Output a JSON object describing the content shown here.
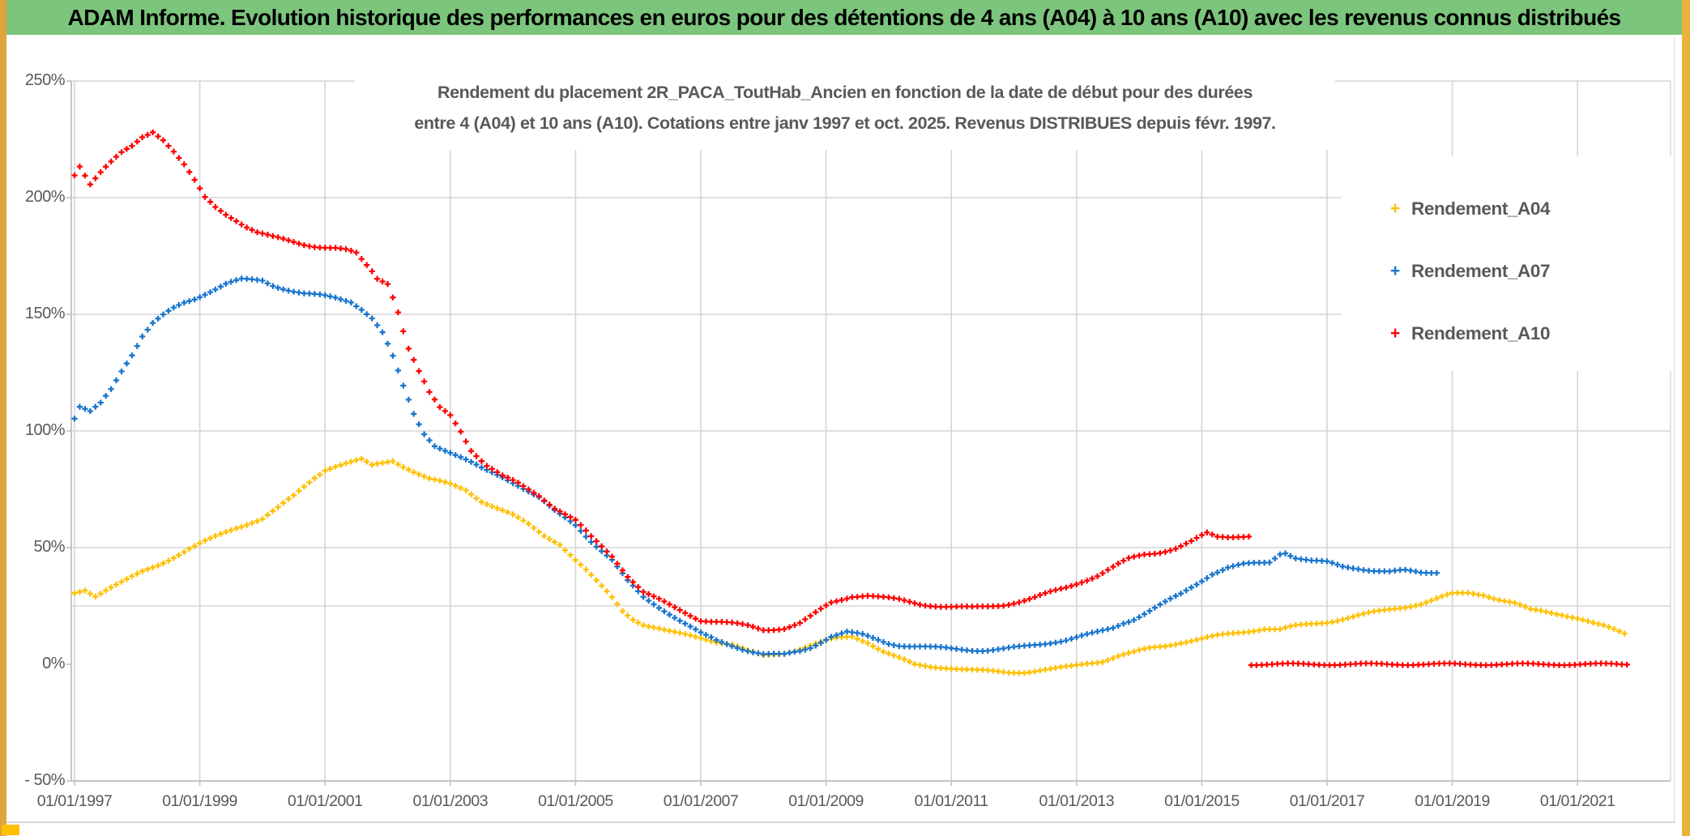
{
  "page": {
    "title": "ADAM Informe. Evolution historique des performances en euros pour des détentions de 4 ans (A04) à 10 ans (A10) avec les revenus connus distribués"
  },
  "chart": {
    "subtitle_line1": "Rendement du placement 2R_PACA_ToutHab_Ancien en fonction de la date de début pour des durées",
    "subtitle_line2": "entre 4 (A04) et 10 ans (A10). Cotations entre janv 1997 et oct. 2025. Revenus DISTRIBUES depuis févr. 1997."
  },
  "legend": {
    "items": [
      {
        "label": "Rendement_A04",
        "marker": "+",
        "color": "#FFC000"
      },
      {
        "label": "Rendement_A07",
        "marker": "+",
        "color": "#1874CD"
      },
      {
        "label": "Rendement_A10",
        "marker": "+",
        "color": "#FF0000"
      }
    ]
  },
  "chart_data": {
    "type": "scatter",
    "marker_style": "plus",
    "title": "Rendement du placement 2R_PACA_ToutHab_Ancien en fonction de la date de début pour des durées entre 4 (A04) et 10 ans (A10). Cotations entre janv 1997 et oct. 2025. Revenus DISTRIBUES depuis févr. 1997.",
    "x_axis": {
      "ticks": [
        "01/01/1997",
        "01/01/1999",
        "01/01/2001",
        "01/01/2003",
        "01/01/2005",
        "01/01/2007",
        "01/01/2009",
        "01/01/2011",
        "01/01/2013",
        "01/01/2015",
        "01/01/2017",
        "01/01/2019",
        "01/01/2021"
      ],
      "start_year": 1997,
      "tick_step_years": 2,
      "end_year": 2022.4
    },
    "y_axis": {
      "min": -50,
      "max": 250,
      "ticks": [
        {
          "label": "250%",
          "value": 250
        },
        {
          "label": "200%",
          "value": 200
        },
        {
          "label": "150%",
          "value": 150
        },
        {
          "label": "100%",
          "value": 100
        },
        {
          "label": "50%",
          "value": 50
        },
        {
          "label": "0%",
          "value": 0
        },
        {
          "label": "- 50%",
          "value": -50
        }
      ],
      "gridline_values": [
        250,
        200,
        150,
        100,
        50,
        25,
        -50
      ]
    },
    "series": [
      {
        "name": "Rendement_A04",
        "color": "#FFC000",
        "points": [
          [
            1997.0,
            30.5
          ],
          [
            1997.17,
            32
          ],
          [
            1997.33,
            29.5
          ],
          [
            1997.58,
            33
          ],
          [
            1997.83,
            36
          ],
          [
            1998.08,
            39.5
          ],
          [
            1998.33,
            42.5
          ],
          [
            1998.58,
            46
          ],
          [
            1998.83,
            49.5
          ],
          [
            1999.08,
            52.5
          ],
          [
            1999.33,
            55.5
          ],
          [
            1999.58,
            58.5
          ],
          [
            1999.83,
            61
          ],
          [
            2000.0,
            62.5
          ],
          [
            2000.25,
            67
          ],
          [
            2000.5,
            72
          ],
          [
            2000.83,
            80
          ],
          [
            2001.0,
            83.5
          ],
          [
            2001.17,
            85.1
          ],
          [
            2001.58,
            87.6
          ],
          [
            2001.75,
            85.1
          ],
          [
            2002.08,
            87.4
          ],
          [
            2002.33,
            83.9
          ],
          [
            2002.67,
            79.3
          ],
          [
            2003.0,
            77
          ],
          [
            2003.25,
            74.7
          ],
          [
            2003.5,
            70.1
          ],
          [
            2003.83,
            66
          ],
          [
            2004.0,
            63.8
          ],
          [
            2004.25,
            59.8
          ],
          [
            2004.5,
            55.2
          ],
          [
            2004.75,
            51.7
          ],
          [
            2005.0,
            44.8
          ],
          [
            2005.17,
            40.2
          ],
          [
            2005.33,
            35.6
          ],
          [
            2005.58,
            28.7
          ],
          [
            2005.75,
            23
          ],
          [
            2005.92,
            19.5
          ],
          [
            2006.08,
            17.2
          ],
          [
            2006.5,
            13.8
          ],
          [
            2007.0,
            11.5
          ],
          [
            2007.25,
            9.8
          ],
          [
            2007.5,
            8.5
          ],
          [
            2007.75,
            5.5
          ],
          [
            2008.0,
            3.6
          ],
          [
            2008.25,
            4.5
          ],
          [
            2008.5,
            6
          ],
          [
            2008.75,
            8
          ],
          [
            2009.0,
            9.9
          ],
          [
            2009.17,
            11
          ],
          [
            2009.42,
            12
          ],
          [
            2009.67,
            9.5
          ],
          [
            2009.92,
            5.5
          ],
          [
            2010.17,
            2.5
          ],
          [
            2010.42,
            -0.4
          ],
          [
            2010.67,
            -1
          ],
          [
            2010.92,
            -1.3
          ],
          [
            2011.17,
            -2
          ],
          [
            2011.42,
            -2.8
          ],
          [
            2011.67,
            -3.2
          ],
          [
            2011.92,
            -3.4
          ],
          [
            2012.17,
            -3.2
          ],
          [
            2012.42,
            -2.6
          ],
          [
            2012.67,
            -2
          ],
          [
            2012.92,
            -1
          ],
          [
            2013.17,
            0.5
          ],
          [
            2013.42,
            1.5
          ],
          [
            2013.67,
            3.6
          ],
          [
            2013.92,
            5
          ],
          [
            2014.17,
            6.8
          ],
          [
            2014.42,
            8
          ],
          [
            2014.67,
            9.5
          ],
          [
            2014.92,
            10.5
          ],
          [
            2015.0,
            10.9
          ],
          [
            2015.5,
            13.2
          ],
          [
            2016.0,
            15.4
          ],
          [
            2016.25,
            14.8
          ],
          [
            2016.5,
            16.3
          ],
          [
            2017.0,
            18.2
          ],
          [
            2017.5,
            20.8
          ],
          [
            2018.0,
            23.5
          ],
          [
            2018.5,
            26
          ],
          [
            2019.0,
            30
          ],
          [
            2019.25,
            30.6
          ],
          [
            2019.5,
            30
          ],
          [
            2019.75,
            27.8
          ],
          [
            2020.0,
            26
          ],
          [
            2020.25,
            23.2
          ],
          [
            2020.5,
            22.5
          ],
          [
            2020.75,
            21.5
          ],
          [
            2021.0,
            19.9
          ],
          [
            2021.25,
            17.5
          ],
          [
            2021.5,
            15.5
          ],
          [
            2021.75,
            13.2
          ]
        ]
      },
      {
        "name": "Rendement_A07",
        "color": "#1874CD",
        "points": [
          [
            1997.0,
            105
          ],
          [
            1997.08,
            110
          ],
          [
            1997.25,
            108
          ],
          [
            1997.42,
            112
          ],
          [
            1997.58,
            118
          ],
          [
            1997.75,
            126
          ],
          [
            1997.92,
            133
          ],
          [
            1998.08,
            140.5
          ],
          [
            1998.25,
            146
          ],
          [
            1998.42,
            149.5
          ],
          [
            1998.58,
            152.5
          ],
          [
            1998.75,
            155
          ],
          [
            1998.92,
            156.8
          ],
          [
            1999.17,
            160
          ],
          [
            1999.42,
            163
          ],
          [
            1999.67,
            164.8
          ],
          [
            2000.0,
            164.5
          ],
          [
            2000.17,
            162.5
          ],
          [
            2000.42,
            160.5
          ],
          [
            2000.67,
            158.8
          ],
          [
            2000.92,
            158
          ],
          [
            2001.17,
            157
          ],
          [
            2001.42,
            155.5
          ],
          [
            2001.58,
            152.5
          ],
          [
            2001.75,
            148.5
          ],
          [
            2001.92,
            142
          ],
          [
            2002.08,
            132
          ],
          [
            2002.25,
            119
          ],
          [
            2002.42,
            107
          ],
          [
            2002.58,
            99
          ],
          [
            2002.75,
            94
          ],
          [
            2003.0,
            90.8
          ],
          [
            2003.25,
            87.4
          ],
          [
            2003.5,
            83.9
          ],
          [
            2003.83,
            80.5
          ],
          [
            2004.08,
            77
          ],
          [
            2004.42,
            71.3
          ],
          [
            2004.67,
            65.5
          ],
          [
            2005.0,
            59.8
          ],
          [
            2005.25,
            52.9
          ],
          [
            2005.58,
            44.8
          ],
          [
            2005.83,
            35.6
          ],
          [
            2006.08,
            28.7
          ],
          [
            2006.5,
            21.8
          ],
          [
            2007.0,
            13.2
          ],
          [
            2007.25,
            10
          ],
          [
            2007.5,
            8
          ],
          [
            2007.75,
            6.1
          ],
          [
            2008.0,
            4.4
          ],
          [
            2008.33,
            3.9
          ],
          [
            2008.58,
            5.5
          ],
          [
            2008.75,
            7.2
          ],
          [
            2009.08,
            12.1
          ],
          [
            2009.33,
            13.8
          ],
          [
            2009.58,
            12.5
          ],
          [
            2009.75,
            11
          ],
          [
            2010.0,
            9
          ],
          [
            2010.17,
            8.3
          ],
          [
            2010.42,
            7.8
          ],
          [
            2010.67,
            7.2
          ],
          [
            2011.0,
            6.6
          ],
          [
            2011.33,
            6.2
          ],
          [
            2011.58,
            6.1
          ],
          [
            2011.83,
            6.5
          ],
          [
            2012.08,
            7.2
          ],
          [
            2012.33,
            8.2
          ],
          [
            2012.58,
            9.4
          ],
          [
            2012.83,
            10.5
          ],
          [
            2013.08,
            12
          ],
          [
            2013.33,
            13.5
          ],
          [
            2013.58,
            15.5
          ],
          [
            2013.75,
            17.8
          ],
          [
            2013.92,
            19.5
          ],
          [
            2014.17,
            23
          ],
          [
            2014.42,
            26.5
          ],
          [
            2014.67,
            30
          ],
          [
            2014.92,
            34.5
          ],
          [
            2015.17,
            39
          ],
          [
            2015.42,
            41.5
          ],
          [
            2015.67,
            42.7
          ],
          [
            2015.92,
            43.2
          ],
          [
            2016.08,
            43.6
          ],
          [
            2016.25,
            47.5
          ],
          [
            2016.33,
            48.1
          ],
          [
            2016.5,
            45.8
          ],
          [
            2016.75,
            44.3
          ],
          [
            2017.0,
            43.6
          ],
          [
            2017.25,
            41.8
          ],
          [
            2017.5,
            41.2
          ],
          [
            2017.75,
            40.3
          ],
          [
            2018.0,
            39.6
          ],
          [
            2018.25,
            40
          ],
          [
            2018.5,
            39.2
          ],
          [
            2018.75,
            39.6
          ]
        ]
      },
      {
        "name": "Rendement_A10",
        "color": "#FF0000",
        "points": [
          [
            1997.0,
            210
          ],
          [
            1997.08,
            214
          ],
          [
            1997.25,
            206
          ],
          [
            1997.42,
            211
          ],
          [
            1997.58,
            215
          ],
          [
            1997.75,
            219
          ],
          [
            1997.92,
            222
          ],
          [
            1998.08,
            226
          ],
          [
            1998.25,
            228.5
          ],
          [
            1998.42,
            225
          ],
          [
            1998.58,
            220
          ],
          [
            1998.75,
            214
          ],
          [
            1998.92,
            207
          ],
          [
            1999.08,
            200
          ],
          [
            1999.25,
            196
          ],
          [
            1999.42,
            193
          ],
          [
            1999.58,
            190.5
          ],
          [
            1999.75,
            187.5
          ],
          [
            1999.92,
            185
          ],
          [
            2000.17,
            183
          ],
          [
            2000.42,
            181.5
          ],
          [
            2000.67,
            180
          ],
          [
            2000.92,
            179
          ],
          [
            2001.17,
            178.3
          ],
          [
            2001.33,
            177.5
          ],
          [
            2001.5,
            176
          ],
          [
            2001.58,
            173.5
          ],
          [
            2001.75,
            168.5
          ],
          [
            2001.83,
            165.5
          ],
          [
            2002.0,
            163.5
          ],
          [
            2002.08,
            158
          ],
          [
            2002.17,
            151
          ],
          [
            2002.25,
            143
          ],
          [
            2002.33,
            135.5
          ],
          [
            2002.5,
            125.3
          ],
          [
            2002.67,
            116
          ],
          [
            2002.83,
            110
          ],
          [
            2003.0,
            106.9
          ],
          [
            2003.17,
            100
          ],
          [
            2003.33,
            92
          ],
          [
            2003.58,
            85.1
          ],
          [
            2003.83,
            80.5
          ],
          [
            2004.08,
            77.6
          ],
          [
            2004.42,
            72.5
          ],
          [
            2004.67,
            67
          ],
          [
            2005.0,
            61.5
          ],
          [
            2005.25,
            54.5
          ],
          [
            2005.58,
            46.6
          ],
          [
            2005.83,
            38
          ],
          [
            2006.08,
            31
          ],
          [
            2006.5,
            25.3
          ],
          [
            2007.0,
            19
          ],
          [
            2007.33,
            18.1
          ],
          [
            2007.75,
            16.4
          ],
          [
            2008.0,
            14.8
          ],
          [
            2008.33,
            15.5
          ],
          [
            2008.58,
            17.5
          ],
          [
            2008.75,
            20.3
          ],
          [
            2009.08,
            26.3
          ],
          [
            2009.42,
            29.3
          ],
          [
            2009.67,
            29.6
          ],
          [
            2009.92,
            28.5
          ],
          [
            2010.17,
            27.5
          ],
          [
            2010.5,
            25.8
          ],
          [
            2010.83,
            25
          ],
          [
            2011.08,
            24.5
          ],
          [
            2011.33,
            24.2
          ],
          [
            2011.58,
            24.7
          ],
          [
            2011.83,
            25.5
          ],
          [
            2012.08,
            26.9
          ],
          [
            2012.33,
            28.5
          ],
          [
            2012.58,
            30.7
          ],
          [
            2012.83,
            32.8
          ],
          [
            2013.08,
            35.5
          ],
          [
            2013.33,
            38
          ],
          [
            2013.58,
            41.5
          ],
          [
            2013.83,
            45
          ],
          [
            2014.08,
            47
          ],
          [
            2014.33,
            48.1
          ],
          [
            2014.58,
            49.8
          ],
          [
            2014.83,
            52.5
          ],
          [
            2015.08,
            56
          ],
          [
            2015.25,
            54.5
          ],
          [
            2015.42,
            54.6
          ],
          [
            2015.58,
            55
          ],
          [
            2015.75,
            55.2
          ]
        ],
        "zero_run": {
          "from": 2015.79,
          "to": 2021.87,
          "value": 0
        }
      }
    ]
  }
}
